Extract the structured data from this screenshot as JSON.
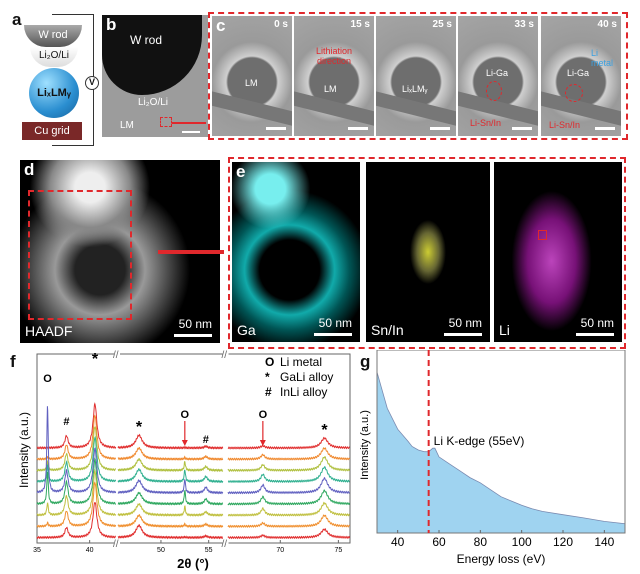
{
  "panel_a": {
    "label": "a",
    "w_rod": "W rod",
    "li2o": "Li₂O/Li",
    "lm": "LiₓLMᵧ",
    "cu": "Cu grid",
    "voltmeter": "V"
  },
  "panel_b": {
    "label": "b",
    "w_rod": "W rod",
    "li2o": "Li₂O/Li",
    "lm": "LM"
  },
  "panel_c": {
    "label": "c",
    "frames": [
      {
        "time": "0 s",
        "text": "LM"
      },
      {
        "time": "15 s",
        "text": "LM",
        "annotation": "Lithiation direction"
      },
      {
        "time": "25 s",
        "text": "LiₓLMᵧ"
      },
      {
        "time": "33 s",
        "text": "Li-Ga",
        "annotation": "Li-Sn/In"
      },
      {
        "time": "40 s",
        "text": "Li-Ga",
        "annotation": "Li-Sn/In",
        "annotation2": "Li metal"
      }
    ]
  },
  "panel_d": {
    "label": "d",
    "name": "HAADF",
    "scale": "50 nm"
  },
  "panel_e": {
    "label": "e",
    "maps": [
      {
        "name": "Ga",
        "scale": "50 nm",
        "color": "#22c8d0"
      },
      {
        "name": "Sn/In",
        "scale": "50 nm",
        "color": "#d8d030"
      },
      {
        "name": "Li",
        "scale": "50 nm",
        "color": "#c040c8"
      }
    ]
  },
  "colors": {
    "annotation_red": "#e0282c",
    "li_metal_blue": "#3aa0e0",
    "fill_blue": "#9fd3f0"
  },
  "chart_data": [
    {
      "panel": "f",
      "type": "line",
      "xlabel": "2θ (°)",
      "ylabel": "Intensity (a.u.)",
      "axis_breaks": [
        [
          42.5,
          45.5
        ],
        [
          56.5,
          65.5
        ]
      ],
      "xlim": [
        35,
        76
      ],
      "xticks": [
        35,
        40,
        50,
        55,
        70,
        75
      ],
      "legend": [
        {
          "symbol": "O",
          "label": "Li metal"
        },
        {
          "symbol": "*",
          "label": "GaLi alloy"
        },
        {
          "symbol": "#",
          "label": "InLi alloy"
        }
      ],
      "legend_position": "top-right",
      "peak_markers": [
        {
          "symbol": "O",
          "x": 36.0
        },
        {
          "symbol": "#",
          "x": 37.8
        },
        {
          "symbol": "*",
          "x": 40.5
        },
        {
          "symbol": "*",
          "x": 47.7
        },
        {
          "symbol": "O",
          "x": 52.5,
          "arrow": true
        },
        {
          "symbol": "#",
          "x": 54.7
        },
        {
          "symbol": "O",
          "x": 68.5,
          "arrow": true
        },
        {
          "symbol": "*",
          "x": 73.8
        }
      ],
      "peaks": [
        36.0,
        37.8,
        40.5,
        47.7,
        52.5,
        54.7,
        68.5,
        73.8
      ],
      "series": [
        {
          "color": "#e03030",
          "peak_heights": [
            0,
            2.2,
            8,
            2.3,
            0.1,
            0.3,
            0.4,
            1.8
          ]
        },
        {
          "color": "#f08a30",
          "peak_heights": [
            0.3,
            2.6,
            8,
            2.0,
            0.3,
            0.5,
            0.8,
            2.0
          ]
        },
        {
          "color": "#b0c040",
          "peak_heights": [
            1.5,
            3,
            8,
            2.0,
            1.6,
            0.7,
            1.0,
            2.4
          ]
        },
        {
          "color": "#30b090",
          "peak_heights": [
            3,
            3.5,
            8,
            2.2,
            2.2,
            0.9,
            1.3,
            2.6
          ]
        },
        {
          "color": "#6060c0",
          "peak_heights": [
            16,
            4,
            8,
            2.2,
            2.5,
            1.0,
            1.4,
            2.6
          ]
        },
        {
          "color": "#30a860",
          "peak_heights": [
            6,
            4,
            8,
            2.0,
            2.5,
            0.9,
            1.3,
            2.4
          ]
        },
        {
          "color": "#c0c040",
          "peak_heights": [
            2.2,
            3.5,
            8,
            2.0,
            1.6,
            0.6,
            1.2,
            2.2
          ]
        },
        {
          "color": "#f09030",
          "peak_heights": [
            0.6,
            2.8,
            8,
            2.0,
            0.4,
            0.4,
            0.6,
            2.0
          ]
        },
        {
          "color": "#e03030",
          "peak_heights": [
            0,
            1.8,
            6.5,
            2.2,
            0.1,
            0.3,
            0.4,
            1.5
          ]
        }
      ]
    },
    {
      "panel": "g",
      "type": "area",
      "xlabel": "Energy loss (eV)",
      "ylabel": "Intensity (a.u.)",
      "xlim": [
        30,
        150
      ],
      "xticks": [
        40,
        60,
        80,
        100,
        120,
        140
      ],
      "x": [
        30,
        35,
        40,
        45,
        47,
        50,
        53,
        55,
        57,
        58,
        60,
        65,
        70,
        75,
        80,
        85,
        90,
        95,
        100,
        105,
        110,
        120,
        130,
        140,
        150
      ],
      "y": [
        0.93,
        0.72,
        0.6,
        0.53,
        0.5,
        0.48,
        0.47,
        0.47,
        0.49,
        0.49,
        0.44,
        0.4,
        0.36,
        0.32,
        0.29,
        0.25,
        0.21,
        0.185,
        0.16,
        0.14,
        0.125,
        0.106,
        0.087,
        0.067,
        0.054
      ],
      "vline": {
        "x": 55,
        "label": "Li K-edge (55eV)"
      }
    }
  ],
  "panel_f_label": "f",
  "panel_g_label": "g"
}
